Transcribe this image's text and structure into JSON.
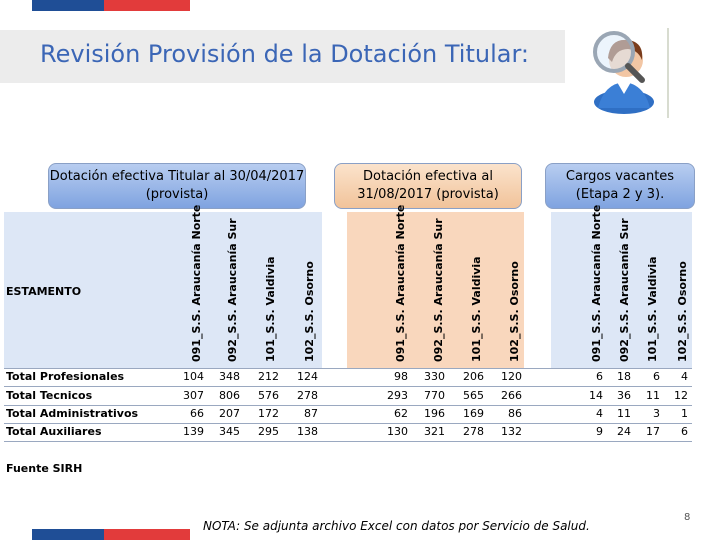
{
  "title": "Revisión Provisión de la Dotación Titular:",
  "headers": [
    "Dotación efectiva Titular al 30/04/2017 (provista)",
    "Dotación efectiva al 31/08/2017 (provista)",
    "Cargos vacantes (Etapa 2 y 3)."
  ],
  "row_header": "ESTAMENTO",
  "columns": [
    "091_S.S. Araucanía Norte",
    "092_S.S. Araucanía Sur",
    "101_S.S. Valdivia",
    "102_S.S. Osorno"
  ],
  "rows": [
    {
      "label": "Total Profesionales",
      "g1": [
        "104",
        "348",
        "212",
        "124"
      ],
      "g2": [
        "98",
        "330",
        "206",
        "120"
      ],
      "g3": [
        "6",
        "18",
        "6",
        "4"
      ]
    },
    {
      "label": "Total Tecnicos",
      "g1": [
        "307",
        "806",
        "576",
        "278"
      ],
      "g2": [
        "293",
        "770",
        "565",
        "266"
      ],
      "g3": [
        "14",
        "36",
        "11",
        "12"
      ]
    },
    {
      "label": "Total Administrativos",
      "g1": [
        "66",
        "207",
        "172",
        "87"
      ],
      "g2": [
        "62",
        "196",
        "169",
        "86"
      ],
      "g3": [
        "4",
        "11",
        "3",
        "1"
      ]
    },
    {
      "label": "Total Auxiliares",
      "g1": [
        "139",
        "345",
        "295",
        "138"
      ],
      "g2": [
        "130",
        "321",
        "278",
        "132"
      ],
      "g3": [
        "9",
        "24",
        "17",
        "6"
      ]
    }
  ],
  "fuente": "Fuente SIRH",
  "nota": "NOTA: Se adjunta archivo Excel con datos por Servicio de Salud.",
  "page_number": "8",
  "icons": {
    "person": "person-magnifier-icon"
  },
  "colors": {
    "title": "#3b66b6",
    "blue_panel": "#dde7f6",
    "orange_panel": "#f9d7bd",
    "bar_blue": "#1f4e96",
    "bar_red": "#e23b3b"
  }
}
